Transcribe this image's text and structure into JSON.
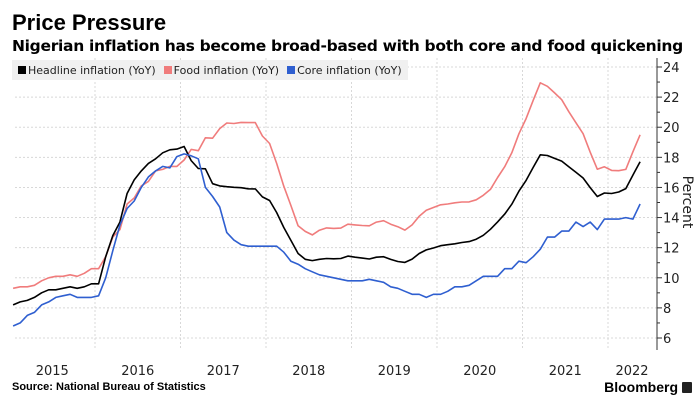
{
  "title": "Price Pressure",
  "subtitle": "Nigerian inflation has become broad-based with both core and food quickening",
  "source": "Source: National Bureau of Statistics",
  "brand": "Bloomberg",
  "chart_data": {
    "type": "line",
    "ylabel": "Percent",
    "ylim": [
      5.3,
      24.5
    ],
    "yticks": [
      6,
      8,
      10,
      12,
      14,
      16,
      18,
      20,
      22,
      24
    ],
    "xlabels": [
      "2015",
      "2016",
      "2017",
      "2018",
      "2019",
      "2020",
      "2021",
      "2022"
    ],
    "x_start": "2015-01",
    "x_end": "2022-05",
    "frequency": "monthly",
    "grid": true,
    "legend": "top-left",
    "series": [
      {
        "name": "Headline inflation (YoY)",
        "color": "#000000",
        "values": [
          8.2,
          8.4,
          8.5,
          8.7,
          9.0,
          9.2,
          9.2,
          9.3,
          9.4,
          9.3,
          9.4,
          9.6,
          9.6,
          11.4,
          12.8,
          13.7,
          15.6,
          16.5,
          17.1,
          17.6,
          17.9,
          18.3,
          18.5,
          18.55,
          18.72,
          17.78,
          17.26,
          17.24,
          16.25,
          16.1,
          16.05,
          16.01,
          15.98,
          15.91,
          15.9,
          15.37,
          15.13,
          14.33,
          13.34,
          12.48,
          11.61,
          11.23,
          11.14,
          11.23,
          11.28,
          11.26,
          11.28,
          11.44,
          11.37,
          11.31,
          11.25,
          11.37,
          11.4,
          11.22,
          11.08,
          11.02,
          11.24,
          11.61,
          11.85,
          11.98,
          12.13,
          12.2,
          12.26,
          12.34,
          12.4,
          12.56,
          12.82,
          13.22,
          13.71,
          14.23,
          14.89,
          15.75,
          16.47,
          17.33,
          18.17,
          18.12,
          17.93,
          17.75,
          17.38,
          17.01,
          16.63,
          15.99,
          15.4,
          15.63,
          15.6,
          15.7,
          15.92,
          16.82,
          17.71
        ]
      },
      {
        "name": "Food inflation (YoY)",
        "color": "#f07c7c",
        "values": [
          9.3,
          9.4,
          9.4,
          9.5,
          9.8,
          10.0,
          10.1,
          10.1,
          10.2,
          10.1,
          10.3,
          10.6,
          10.6,
          11.4,
          12.7,
          13.2,
          14.9,
          15.3,
          16.1,
          16.4,
          17.1,
          17.2,
          17.4,
          17.4,
          17.82,
          18.53,
          18.44,
          19.3,
          19.27,
          19.91,
          20.28,
          20.25,
          20.32,
          20.31,
          20.31,
          19.42,
          18.92,
          17.59,
          16.08,
          14.8,
          13.45,
          13.08,
          12.85,
          13.16,
          13.31,
          13.28,
          13.3,
          13.56,
          13.51,
          13.47,
          13.45,
          13.7,
          13.79,
          13.56,
          13.39,
          13.17,
          13.51,
          14.09,
          14.48,
          14.67,
          14.85,
          14.9,
          14.98,
          15.03,
          15.04,
          15.18,
          15.48,
          15.87,
          16.66,
          17.38,
          18.3,
          19.56,
          20.57,
          21.79,
          22.95,
          22.72,
          22.28,
          21.83,
          21.03,
          20.3,
          19.57,
          18.34,
          17.21,
          17.37,
          17.13,
          17.11,
          17.2,
          18.37,
          19.5
        ]
      },
      {
        "name": "Core inflation (YoY)",
        "color": "#2f5fd0",
        "values": [
          6.8,
          7.0,
          7.5,
          7.7,
          8.2,
          8.4,
          8.7,
          8.8,
          8.9,
          8.7,
          8.7,
          8.7,
          8.8,
          10.0,
          11.8,
          13.5,
          14.6,
          15.1,
          16.0,
          16.7,
          17.1,
          17.4,
          17.3,
          18.05,
          18.23,
          18.1,
          17.9,
          16.0,
          15.4,
          14.7,
          13.0,
          12.5,
          12.2,
          12.1,
          12.1,
          12.1,
          12.1,
          12.1,
          11.7,
          11.1,
          10.9,
          10.6,
          10.4,
          10.2,
          10.1,
          10.0,
          9.9,
          9.8,
          9.8,
          9.8,
          9.9,
          9.8,
          9.7,
          9.4,
          9.3,
          9.1,
          8.9,
          8.9,
          8.7,
          8.9,
          8.9,
          9.1,
          9.4,
          9.4,
          9.5,
          9.8,
          10.1,
          10.1,
          10.1,
          10.6,
          10.6,
          11.1,
          11.0,
          11.4,
          11.9,
          12.7,
          12.7,
          13.1,
          13.1,
          13.7,
          13.4,
          13.7,
          13.2,
          13.9,
          13.9,
          13.9,
          14.0,
          13.9,
          14.9
        ]
      }
    ]
  }
}
